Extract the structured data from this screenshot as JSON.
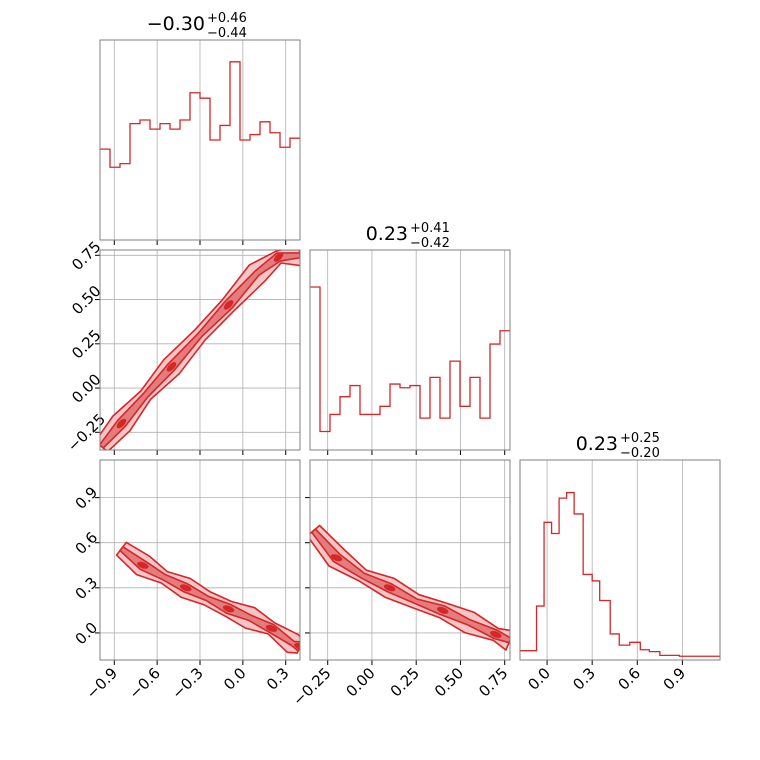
{
  "colors": {
    "line": "#d62728",
    "fill_light": "#f3c5c6",
    "fill_mid": "#e47b7c",
    "grid": "#b0b0b0",
    "frame": "#808080"
  },
  "chart_data": [
    {
      "type": "histogram",
      "panel": "p1d-0",
      "title_main": "−0.30",
      "title_sup": "+0.46",
      "title_sub": "−0.44",
      "xlim": [
        -1.0,
        0.4
      ],
      "xticks": [
        -0.9,
        -0.6,
        -0.3,
        0.0,
        0.3
      ],
      "bin_edges": [
        -1.0,
        -0.93,
        -0.86,
        -0.79,
        -0.72,
        -0.65,
        -0.58,
        -0.51,
        -0.44,
        -0.37,
        -0.3,
        -0.23,
        -0.16,
        -0.09,
        -0.02,
        0.05,
        0.12,
        0.19,
        0.26,
        0.33,
        0.4
      ],
      "counts": [
        10,
        8,
        8.4,
        12.8,
        13.2,
        12.2,
        12.8,
        12.2,
        13.2,
        16.2,
        15.6,
        11,
        12.6,
        19.6,
        11,
        11.6,
        13,
        11.8,
        10.2,
        11.2
      ],
      "ylim": [
        0,
        22
      ]
    },
    {
      "type": "histogram",
      "panel": "p1d-1",
      "title_main": "0.23",
      "title_sup": "+0.41",
      "title_sub": "−0.42",
      "xlim": [
        -0.35,
        0.78
      ],
      "xticks": [
        -0.25,
        0.0,
        0.25,
        0.5,
        0.75
      ],
      "bin_edges": [
        -0.35,
        -0.2935,
        -0.237,
        -0.1805,
        -0.124,
        -0.0675,
        -0.011,
        0.0455,
        0.102,
        0.1585,
        0.215,
        0.2715,
        0.328,
        0.3845,
        0.441,
        0.4975,
        0.554,
        0.6105,
        0.667,
        0.7235,
        0.78
      ],
      "counts": [
        2.2,
        0.25,
        0.48,
        0.72,
        0.87,
        0.48,
        0.48,
        0.59,
        0.89,
        0.84,
        0.87,
        0.43,
        0.98,
        0.43,
        1.2,
        0.59,
        0.98,
        0.43,
        1.43,
        1.61
      ],
      "ylim": [
        0,
        2.7
      ]
    },
    {
      "type": "histogram",
      "panel": "p1d-2",
      "title_main": "0.23",
      "title_sup": "+0.25",
      "title_sub": "−0.20",
      "xlim": [
        -0.18,
        1.15
      ],
      "xticks": [
        0.0,
        0.3,
        0.6,
        0.9
      ],
      "bin_edges": [
        -0.18,
        -0.12,
        -0.07,
        -0.02,
        0.03,
        0.08,
        0.13,
        0.18,
        0.24,
        0.3,
        0.35,
        0.42,
        0.48,
        0.55,
        0.62,
        0.68,
        0.75,
        0.82,
        0.88,
        0.95,
        1.02,
        1.15
      ],
      "counts": [
        0.1,
        0.1,
        0.58,
        1.48,
        1.36,
        1.74,
        1.8,
        1.57,
        0.92,
        0.85,
        0.64,
        0.28,
        0.16,
        0.19,
        0.11,
        0.09,
        0.05,
        0.05,
        0.04,
        0.04,
        0.04
      ],
      "ylim": [
        0,
        2.15
      ]
    },
    {
      "type": "contour",
      "panel": "p2d-1-0",
      "xlim": [
        -1.0,
        0.4
      ],
      "ylim": [
        -0.35,
        0.78
      ],
      "xticks": [
        -0.9,
        -0.6,
        -0.3,
        0.0,
        0.3
      ],
      "yticks": [
        -0.25,
        0.0,
        0.25,
        0.5,
        0.75
      ],
      "ytick_labels": [
        "−0.25",
        "0.00",
        "0.25",
        "0.50",
        "0.75"
      ],
      "band": [
        [
          -0.99,
          -0.33
        ],
        [
          -0.85,
          -0.2
        ],
        [
          -0.68,
          -0.04
        ],
        [
          -0.5,
          0.12
        ],
        [
          -0.3,
          0.3
        ],
        [
          -0.1,
          0.47
        ],
        [
          0.1,
          0.65
        ],
        [
          0.25,
          0.74
        ],
        [
          0.4,
          0.75
        ]
      ]
    },
    {
      "type": "contour",
      "panel": "p2d-2-0",
      "xlim": [
        -1.0,
        0.4
      ],
      "ylim": [
        -0.18,
        1.15
      ],
      "xticks": [
        -0.9,
        -0.6,
        -0.3,
        0.0,
        0.3
      ],
      "xtick_labels": [
        "−0.9",
        "−0.6",
        "−0.3",
        "0.0",
        "0.3"
      ],
      "yticks": [
        0.0,
        0.3,
        0.6,
        0.9
      ],
      "ytick_labels": [
        "0.0",
        "0.3",
        "0.6",
        "0.9"
      ],
      "band": [
        [
          -0.85,
          0.56
        ],
        [
          -0.7,
          0.45
        ],
        [
          -0.55,
          0.37
        ],
        [
          -0.4,
          0.3
        ],
        [
          -0.25,
          0.23
        ],
        [
          -0.1,
          0.16
        ],
        [
          0.05,
          0.1
        ],
        [
          0.2,
          0.03
        ],
        [
          0.35,
          -0.07
        ],
        [
          0.4,
          -0.09
        ]
      ]
    },
    {
      "type": "contour",
      "panel": "p2d-2-1",
      "xlim": [
        -0.35,
        0.78
      ],
      "ylim": [
        -0.18,
        1.15
      ],
      "xticks": [
        -0.25,
        0.0,
        0.25,
        0.5,
        0.75
      ],
      "xtick_labels": [
        "−0.25",
        "0.00",
        "0.25",
        "0.50",
        "0.75"
      ],
      "yticks": [
        0.0,
        0.3,
        0.6,
        0.9
      ],
      "band": [
        [
          -0.33,
          0.68
        ],
        [
          -0.2,
          0.5
        ],
        [
          -0.05,
          0.38
        ],
        [
          0.1,
          0.3
        ],
        [
          0.25,
          0.21
        ],
        [
          0.4,
          0.15
        ],
        [
          0.55,
          0.07
        ],
        [
          0.7,
          -0.01
        ],
        [
          0.78,
          -0.05
        ]
      ]
    }
  ]
}
